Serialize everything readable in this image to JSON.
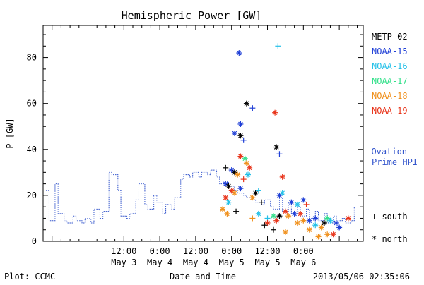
{
  "chart_data": {
    "type": "scatter",
    "title": "Hemispheric Power [GW]",
    "ylabel": "P [GW]",
    "xlabel": "Date and Time",
    "ylim": [
      0,
      94
    ],
    "yticks": [
      0,
      20,
      40,
      60,
      80
    ],
    "xlim_hours": [
      -15,
      92
    ],
    "x_ticks": [
      {
        "time": "12:00",
        "date": "May 3"
      },
      {
        "time": "0:00",
        "date": "May 4"
      },
      {
        "time": "12:00",
        "date": "May 4"
      },
      {
        "time": "0:00",
        "date": "May 5"
      },
      {
        "time": "12:00",
        "date": "May 5"
      },
      {
        "time": "0:00",
        "date": "May 6"
      }
    ],
    "footer_left": "Plot: CCMC",
    "footer_right": "2013/05/06 02:35:06",
    "legend": {
      "placement": "right",
      "satellites": [
        {
          "name": "METP-02",
          "color": "#000000"
        },
        {
          "name": "NOAA-15",
          "color": "#1f3fd6"
        },
        {
          "name": "NOAA-16",
          "color": "#24c0e8"
        },
        {
          "name": "NOAA-17",
          "color": "#33e08a"
        },
        {
          "name": "NOAA-18",
          "color": "#f0901c"
        },
        {
          "name": "NOAA-19",
          "color": "#e8341a"
        }
      ],
      "ovation_label_1": "— Ovation",
      "ovation_label_2": "Prime HPI",
      "south_label": "+ south",
      "north_label": "* north"
    },
    "ovation_series": {
      "name": "Ovation Prime HPI",
      "color": "#3355cc",
      "x": [
        -14,
        -13,
        -11,
        -10,
        -8,
        -7,
        -5,
        -4,
        -2,
        -1,
        1,
        2,
        4,
        5,
        7,
        8,
        10,
        11,
        13,
        14,
        16,
        17,
        19,
        20,
        22,
        23,
        25,
        26,
        28,
        29,
        31,
        32,
        34,
        35,
        37,
        38,
        40,
        41,
        43,
        44,
        46,
        47,
        49,
        50,
        52,
        53,
        55,
        56,
        58,
        59,
        61,
        62,
        64,
        65,
        67,
        68,
        70,
        71,
        73,
        74,
        76,
        77,
        79,
        80,
        82,
        83,
        85,
        86,
        88,
        89
      ],
      "y": [
        22,
        9,
        25,
        12,
        9,
        8,
        11,
        9,
        8,
        10,
        8,
        14,
        10,
        13,
        30,
        29,
        22,
        11,
        10,
        12,
        18,
        25,
        16,
        14,
        20,
        17,
        12,
        16,
        14,
        19,
        27,
        29,
        28,
        30,
        28,
        30,
        29,
        31,
        28,
        25,
        26,
        24,
        22,
        21,
        20,
        19,
        18,
        17,
        16,
        18,
        15,
        14,
        19,
        13,
        17,
        12,
        15,
        11,
        14,
        10,
        13,
        9,
        12,
        8,
        11,
        9,
        10,
        8,
        9,
        15
      ]
    },
    "points": [
      {
        "sat": "NOAA-15",
        "hem": "north",
        "x": 50.5,
        "y": 82
      },
      {
        "sat": "NOAA-16",
        "hem": "south",
        "x": 63.5,
        "y": 85
      },
      {
        "sat": "METP-02",
        "hem": "north",
        "x": 53,
        "y": 60
      },
      {
        "sat": "NOAA-15",
        "hem": "south",
        "x": 55,
        "y": 58
      },
      {
        "sat": "NOAA-19",
        "hem": "north",
        "x": 62.5,
        "y": 56
      },
      {
        "sat": "NOAA-15",
        "hem": "north",
        "x": 51,
        "y": 51
      },
      {
        "sat": "NOAA-15",
        "hem": "north",
        "x": 49,
        "y": 47
      },
      {
        "sat": "METP-02",
        "hem": "north",
        "x": 51,
        "y": 46
      },
      {
        "sat": "NOAA-15",
        "hem": "south",
        "x": 52,
        "y": 44
      },
      {
        "sat": "METP-02",
        "hem": "north",
        "x": 63,
        "y": 41
      },
      {
        "sat": "NOAA-15",
        "hem": "south",
        "x": 64,
        "y": 38
      },
      {
        "sat": "NOAA-19",
        "hem": "north",
        "x": 51,
        "y": 37
      },
      {
        "sat": "NOAA-17",
        "hem": "north",
        "x": 52.5,
        "y": 36
      },
      {
        "sat": "NOAA-18",
        "hem": "north",
        "x": 53,
        "y": 34
      },
      {
        "sat": "METP-02",
        "hem": "south",
        "x": 46,
        "y": 32
      },
      {
        "sat": "NOAA-19",
        "hem": "north",
        "x": 54,
        "y": 32
      },
      {
        "sat": "NOAA-15",
        "hem": "north",
        "x": 48,
        "y": 31
      },
      {
        "sat": "METP-02",
        "hem": "north",
        "x": 49,
        "y": 30
      },
      {
        "sat": "NOAA-18",
        "hem": "north",
        "x": 50,
        "y": 29
      },
      {
        "sat": "NOAA-16",
        "hem": "north",
        "x": 53.5,
        "y": 29
      },
      {
        "sat": "NOAA-19",
        "hem": "north",
        "x": 65,
        "y": 28
      },
      {
        "sat": "NOAA-19",
        "hem": "south",
        "x": 52,
        "y": 27
      },
      {
        "sat": "NOAA-15",
        "hem": "north",
        "x": 46,
        "y": 25
      },
      {
        "sat": "METP-02",
        "hem": "north",
        "x": 47,
        "y": 24
      },
      {
        "sat": "NOAA-15",
        "hem": "north",
        "x": 51,
        "y": 23
      },
      {
        "sat": "NOAA-19",
        "hem": "north",
        "x": 48,
        "y": 22
      },
      {
        "sat": "METP-02",
        "hem": "north",
        "x": 56,
        "y": 21
      },
      {
        "sat": "NOAA-16",
        "hem": "south",
        "x": 57,
        "y": 22
      },
      {
        "sat": "NOAA-18",
        "hem": "north",
        "x": 49,
        "y": 21
      },
      {
        "sat": "NOAA-15",
        "hem": "north",
        "x": 64,
        "y": 20
      },
      {
        "sat": "NOAA-16",
        "hem": "north",
        "x": 65,
        "y": 21
      },
      {
        "sat": "NOAA-19",
        "hem": "north",
        "x": 46,
        "y": 19
      },
      {
        "sat": "NOAA-18",
        "hem": "north",
        "x": 55,
        "y": 19
      },
      {
        "sat": "NOAA-16",
        "hem": "north",
        "x": 47,
        "y": 17
      },
      {
        "sat": "NOAA-15",
        "hem": "north",
        "x": 72,
        "y": 18
      },
      {
        "sat": "NOAA-15",
        "hem": "north",
        "x": 68,
        "y": 17
      },
      {
        "sat": "METP-02",
        "hem": "south",
        "x": 58,
        "y": 17
      },
      {
        "sat": "NOAA-16",
        "hem": "north",
        "x": 70,
        "y": 16
      },
      {
        "sat": "NOAA-19",
        "hem": "south",
        "x": 73,
        "y": 16
      },
      {
        "sat": "NOAA-18",
        "hem": "north",
        "x": 45,
        "y": 14
      },
      {
        "sat": "METP-02",
        "hem": "south",
        "x": 49.5,
        "y": 13
      },
      {
        "sat": "NOAA-19",
        "hem": "north",
        "x": 66,
        "y": 13
      },
      {
        "sat": "NOAA-18",
        "hem": "north",
        "x": 46.5,
        "y": 12
      },
      {
        "sat": "NOAA-16",
        "hem": "north",
        "x": 57,
        "y": 12
      },
      {
        "sat": "NOAA-15",
        "hem": "north",
        "x": 69,
        "y": 12
      },
      {
        "sat": "NOAA-19",
        "hem": "north",
        "x": 71,
        "y": 12
      },
      {
        "sat": "METP-02",
        "hem": "north",
        "x": 64,
        "y": 11
      },
      {
        "sat": "NOAA-18",
        "hem": "north",
        "x": 67,
        "y": 11
      },
      {
        "sat": "NOAA-17",
        "hem": "north",
        "x": 62,
        "y": 11
      },
      {
        "sat": "NOAA-18",
        "hem": "south",
        "x": 55,
        "y": 10
      },
      {
        "sat": "NOAA-16",
        "hem": "south",
        "x": 60,
        "y": 10
      },
      {
        "sat": "NOAA-19",
        "hem": "north",
        "x": 87,
        "y": 10
      },
      {
        "sat": "NOAA-15",
        "hem": "north",
        "x": 76,
        "y": 10
      },
      {
        "sat": "NOAA-17",
        "hem": "north",
        "x": 80,
        "y": 10
      },
      {
        "sat": "NOAA-15",
        "hem": "north",
        "x": 74,
        "y": 9
      },
      {
        "sat": "NOAA-18",
        "hem": "north",
        "x": 72,
        "y": 9
      },
      {
        "sat": "NOAA-19",
        "hem": "north",
        "x": 63,
        "y": 9
      },
      {
        "sat": "NOAA-16",
        "hem": "north",
        "x": 81,
        "y": 9
      },
      {
        "sat": "METP-02",
        "hem": "north",
        "x": 79,
        "y": 8
      },
      {
        "sat": "NOAA-18",
        "hem": "north",
        "x": 70,
        "y": 8
      },
      {
        "sat": "NOAA-15",
        "hem": "north",
        "x": 83,
        "y": 8
      },
      {
        "sat": "NOAA-19",
        "hem": "north",
        "x": 60,
        "y": 8
      },
      {
        "sat": "METP-02",
        "hem": "south",
        "x": 59,
        "y": 7
      },
      {
        "sat": "NOAA-16",
        "hem": "north",
        "x": 76,
        "y": 7
      },
      {
        "sat": "NOAA-18",
        "hem": "north",
        "x": 78,
        "y": 6
      },
      {
        "sat": "METP-02",
        "hem": "south",
        "x": 62,
        "y": 5
      },
      {
        "sat": "NOAA-15",
        "hem": "north",
        "x": 84,
        "y": 6
      },
      {
        "sat": "NOAA-18",
        "hem": "north",
        "x": 74,
        "y": 5
      },
      {
        "sat": "NOAA-18",
        "hem": "north",
        "x": 66,
        "y": 4
      },
      {
        "sat": "NOAA-18",
        "hem": "north",
        "x": 80,
        "y": 3
      },
      {
        "sat": "NOAA-19",
        "hem": "north",
        "x": 82,
        "y": 3
      },
      {
        "sat": "NOAA-18",
        "hem": "north",
        "x": 77,
        "y": 2
      }
    ]
  }
}
